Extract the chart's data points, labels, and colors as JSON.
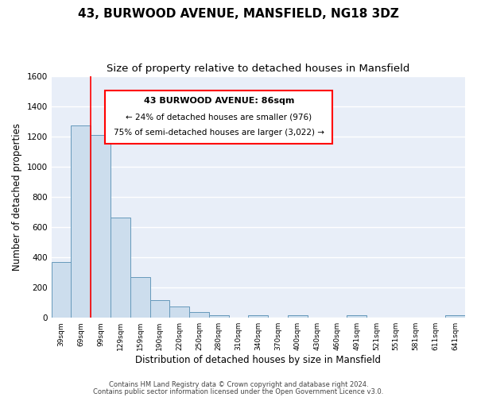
{
  "title": "43, BURWOOD AVENUE, MANSFIELD, NG18 3DZ",
  "subtitle": "Size of property relative to detached houses in Mansfield",
  "xlabel": "Distribution of detached houses by size in Mansfield",
  "ylabel": "Number of detached properties",
  "bin_labels": [
    "39sqm",
    "69sqm",
    "99sqm",
    "129sqm",
    "159sqm",
    "190sqm",
    "220sqm",
    "250sqm",
    "280sqm",
    "310sqm",
    "340sqm",
    "370sqm",
    "400sqm",
    "430sqm",
    "460sqm",
    "491sqm",
    "521sqm",
    "551sqm",
    "581sqm",
    "611sqm",
    "641sqm"
  ],
  "bar_values": [
    370,
    1270,
    1210,
    665,
    270,
    115,
    75,
    38,
    18,
    0,
    15,
    0,
    15,
    0,
    0,
    15,
    0,
    0,
    0,
    0,
    15
  ],
  "bar_color": "#ccdded",
  "bar_edge_color": "#6699bb",
  "ylim": [
    0,
    1600
  ],
  "yticks": [
    0,
    200,
    400,
    600,
    800,
    1000,
    1200,
    1400,
    1600
  ],
  "red_line_x": 1.5,
  "annotation_title": "43 BURWOOD AVENUE: 86sqm",
  "annotation_line1": "← 24% of detached houses are smaller (976)",
  "annotation_line2": "75% of semi-detached houses are larger (3,022) →",
  "footer_line1": "Contains HM Land Registry data © Crown copyright and database right 2024.",
  "footer_line2": "Contains public sector information licensed under the Open Government Licence v3.0.",
  "background_color": "#ffffff",
  "plot_bg_color": "#e8eef8",
  "grid_color": "#ffffff",
  "title_fontsize": 11,
  "subtitle_fontsize": 9.5
}
